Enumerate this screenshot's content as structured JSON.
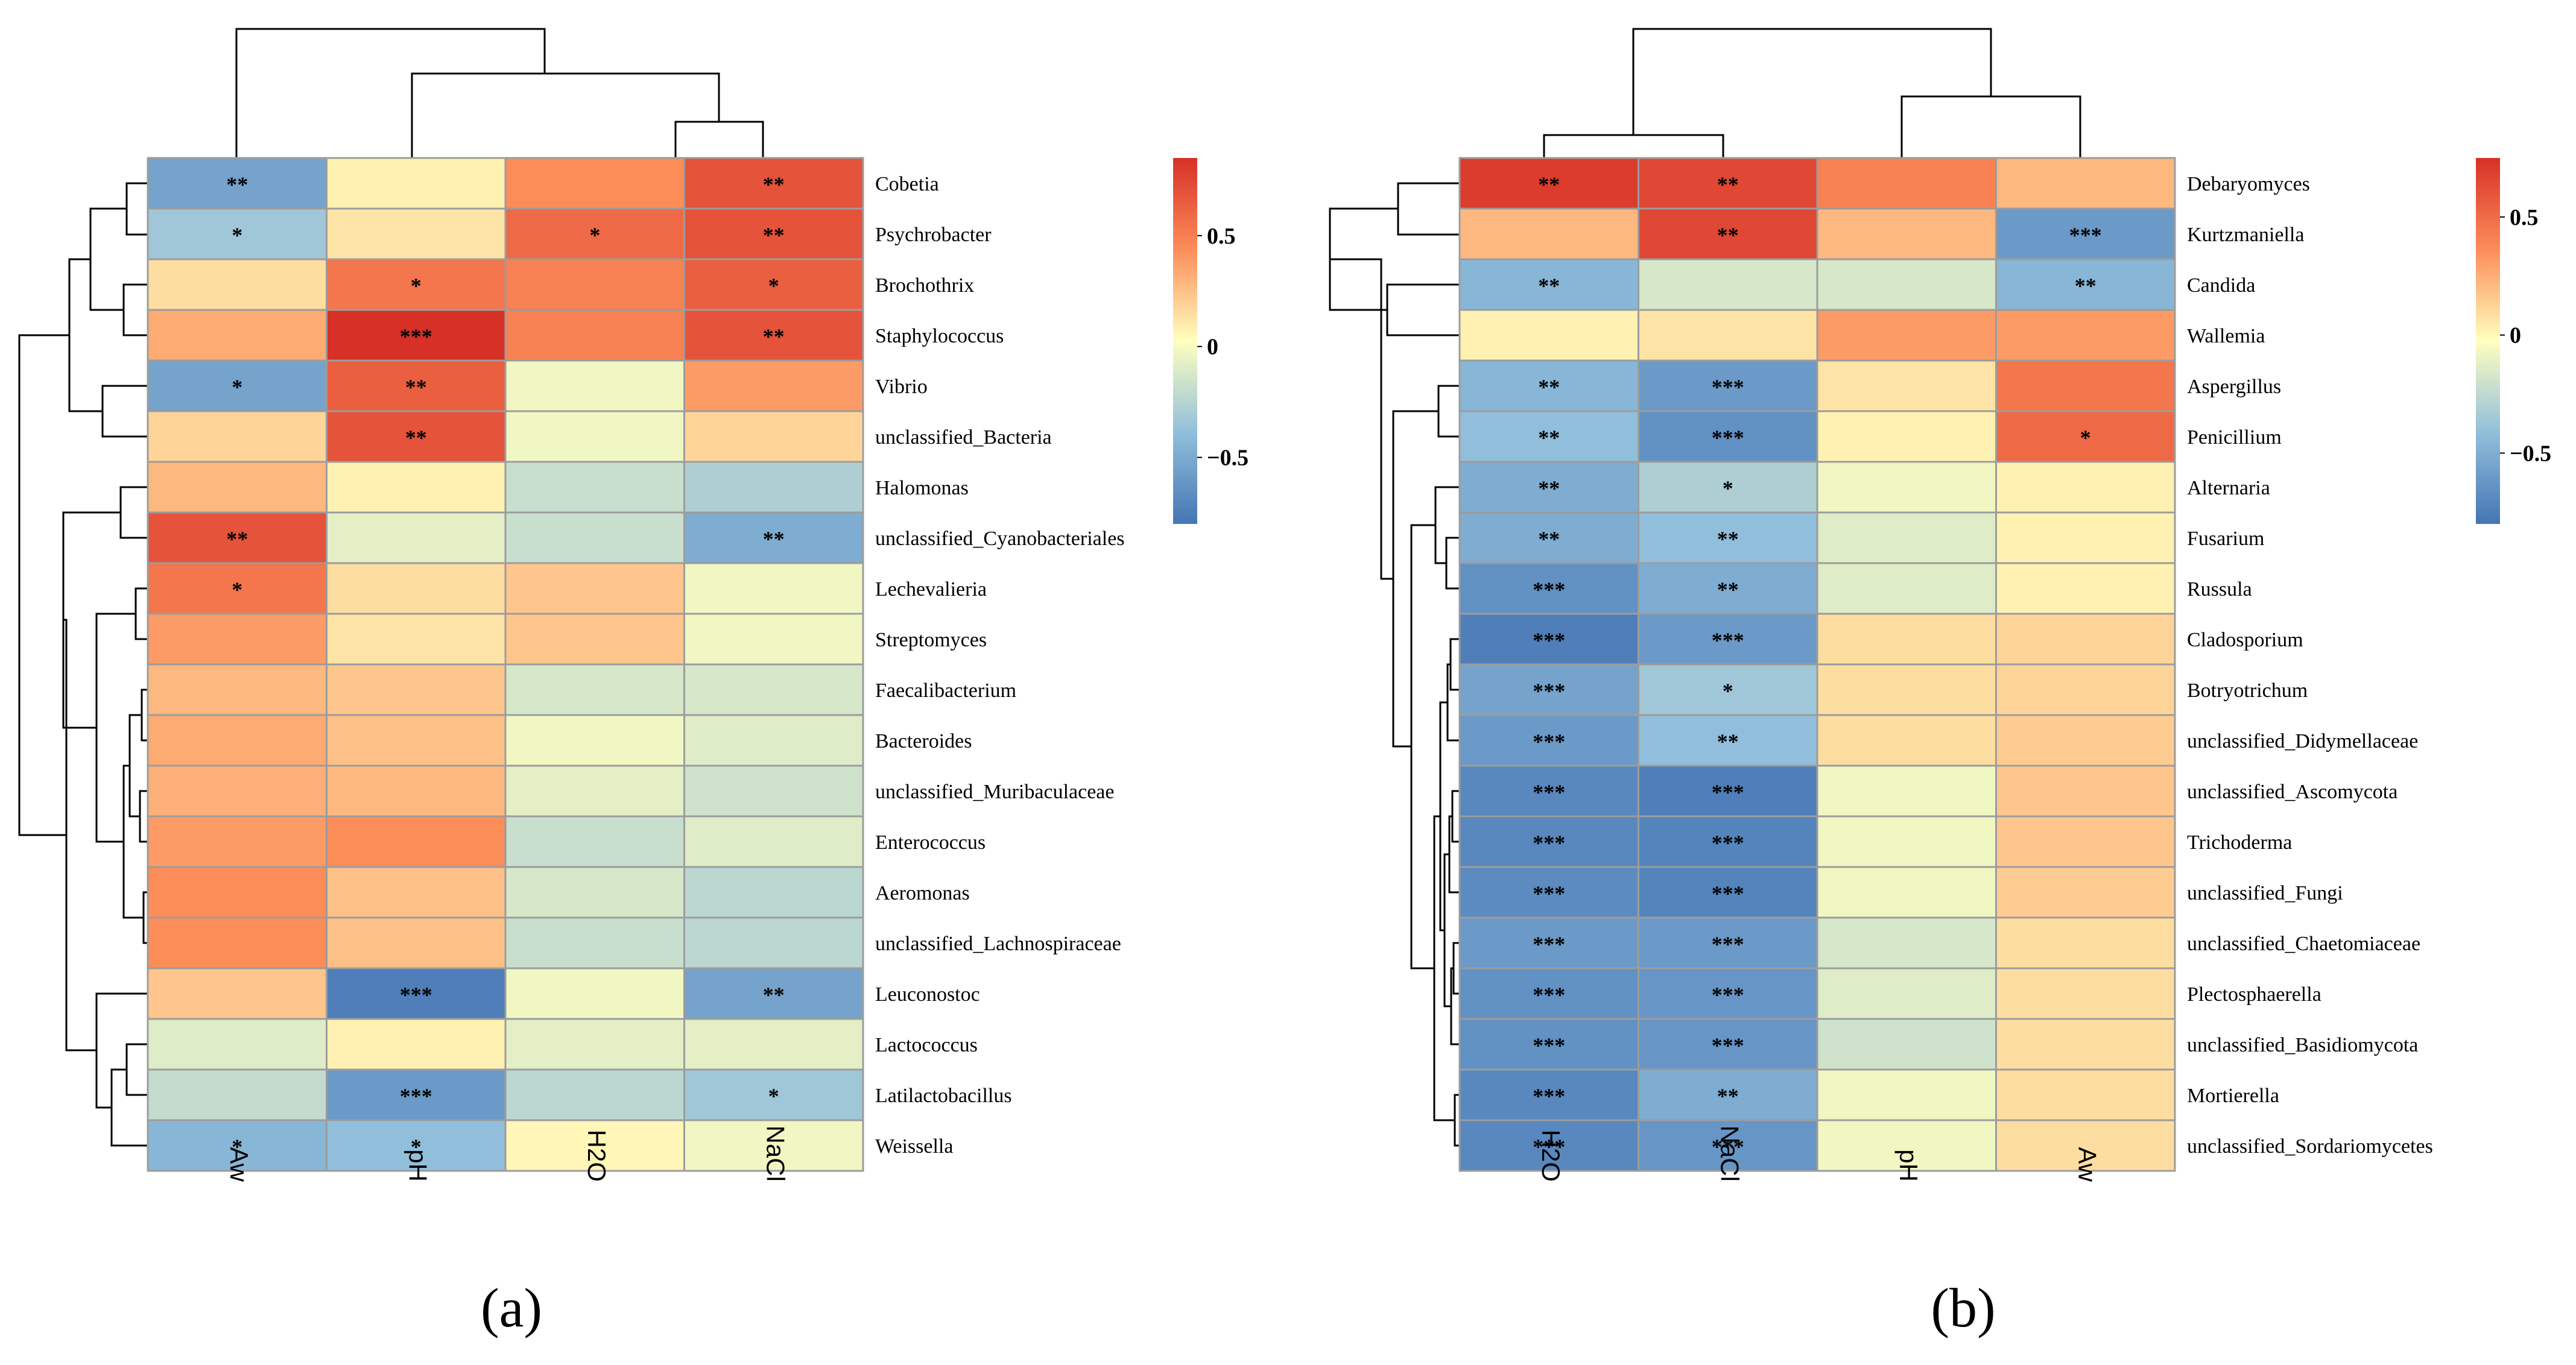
{
  "figure_labels": [
    "(a)",
    "(b)"
  ],
  "colors": {
    "low": "#4575b4",
    "mid": "#ffffbf",
    "high": "#d73027",
    "cell_border": "#9c9c9c",
    "line": "#000000"
  },
  "chart_data": [
    {
      "type": "heatmap",
      "title": "(a)",
      "columns": [
        "Aw",
        "pH",
        "H2O",
        "NaCl"
      ],
      "rows": [
        "Cobetia",
        "Psychrobacter",
        "Brochothrix",
        "Staphylococcus",
        "Vibrio",
        "unclassified_Bacteria",
        "Halomonas",
        "unclassified_Cyanobacteriales",
        "Lechevalieria",
        "Streptomyces",
        "Faecalibacterium",
        "Bacteroides",
        "unclassified_Muribaculaceae",
        "Enterococcus",
        "Aeromonas",
        "unclassified_Lachnospiraceae",
        "Leuconostoc",
        "Lactococcus",
        "Latilactobacillus",
        "Weissella"
      ],
      "values": [
        [
          -0.55,
          0.05,
          0.4,
          0.65
        ],
        [
          -0.35,
          0.1,
          0.55,
          0.65
        ],
        [
          0.12,
          0.5,
          0.45,
          0.6
        ],
        [
          0.3,
          0.85,
          0.45,
          0.65
        ],
        [
          -0.55,
          0.6,
          -0.05,
          0.35
        ],
        [
          0.15,
          0.65,
          -0.05,
          0.15
        ],
        [
          0.25,
          0.05,
          -0.2,
          -0.3
        ],
        [
          0.65,
          -0.1,
          -0.2,
          -0.5
        ],
        [
          0.5,
          0.12,
          0.2,
          -0.05
        ],
        [
          0.35,
          0.1,
          0.2,
          -0.05
        ],
        [
          0.25,
          0.2,
          -0.15,
          -0.15
        ],
        [
          0.3,
          0.22,
          -0.05,
          -0.12
        ],
        [
          0.28,
          0.25,
          -0.1,
          -0.18
        ],
        [
          0.35,
          0.4,
          -0.2,
          -0.12
        ],
        [
          0.4,
          0.22,
          -0.15,
          -0.25
        ],
        [
          0.4,
          0.22,
          -0.2,
          -0.25
        ],
        [
          0.2,
          -0.75,
          -0.05,
          -0.55
        ],
        [
          -0.12,
          0.05,
          -0.1,
          -0.1
        ],
        [
          -0.22,
          -0.6,
          -0.25,
          -0.35
        ],
        [
          -0.45,
          -0.4,
          0.03,
          -0.05
        ]
      ],
      "significance": [
        [
          "**",
          "",
          "",
          "**"
        ],
        [
          "*",
          "",
          "*",
          "**"
        ],
        [
          "",
          "*",
          "",
          "*"
        ],
        [
          "",
          "***",
          "",
          "**"
        ],
        [
          "*",
          "**",
          "",
          ""
        ],
        [
          "",
          "**",
          "",
          ""
        ],
        [
          "",
          "",
          "",
          ""
        ],
        [
          "**",
          "",
          "",
          "**"
        ],
        [
          "*",
          "",
          "",
          ""
        ],
        [
          "",
          "",
          "",
          ""
        ],
        [
          "",
          "",
          "",
          ""
        ],
        [
          "",
          "",
          "",
          ""
        ],
        [
          "",
          "",
          "",
          ""
        ],
        [
          "",
          "",
          "",
          ""
        ],
        [
          "",
          "",
          "",
          ""
        ],
        [
          "",
          "",
          "",
          ""
        ],
        [
          "",
          "***",
          "",
          "**"
        ],
        [
          "",
          "",
          "",
          ""
        ],
        [
          "",
          "***",
          "",
          "*"
        ],
        [
          "*",
          "*",
          "",
          ""
        ]
      ],
      "legend": {
        "ticks": [
          0.5,
          0,
          -0.5
        ],
        "tick_labels": [
          "0.5",
          "0",
          "−0.5"
        ],
        "range": [
          -0.8,
          0.85
        ]
      },
      "col_dendrogram": {
        "merges": [
          [
            2,
            3
          ],
          [
            1,
            "H2O-NaCl"
          ],
          [
            0,
            "pH-H2O-NaCl"
          ]
        ]
      }
    },
    {
      "type": "heatmap",
      "title": "(b)",
      "columns": [
        "H2O",
        "NaCl",
        "pH",
        "Aw"
      ],
      "rows": [
        "Debaryomyces",
        "Kurtzmaniella",
        "Candida",
        "Wallemia",
        "Aspergillus",
        "Penicillium",
        "Alternaria",
        "Fusarium",
        "Russula",
        "Cladosporium",
        "Botryotrichum",
        "unclassified_Didymellaceae",
        "unclassified_Ascomycota",
        "Trichoderma",
        "unclassified_Fungi",
        "unclassified_Chaetomiaceae",
        "Plectosphaerella",
        "unclassified_Basidiomycota",
        "Mortierella",
        "unclassified_Sordariomycetes"
      ],
      "values": [
        [
          0.75,
          0.7,
          0.45,
          0.25
        ],
        [
          0.25,
          0.7,
          0.25,
          -0.6
        ],
        [
          -0.45,
          -0.15,
          -0.15,
          -0.45
        ],
        [
          0.05,
          0.1,
          0.35,
          0.35
        ],
        [
          -0.45,
          -0.6,
          0.1,
          0.5
        ],
        [
          -0.4,
          -0.65,
          0.05,
          0.55
        ],
        [
          -0.5,
          -0.3,
          -0.05,
          0.05
        ],
        [
          -0.5,
          -0.4,
          -0.12,
          0.05
        ],
        [
          -0.65,
          -0.5,
          -0.12,
          0.05
        ],
        [
          -0.75,
          -0.6,
          0.12,
          0.15
        ],
        [
          -0.55,
          -0.35,
          0.12,
          0.15
        ],
        [
          -0.6,
          -0.4,
          0.12,
          0.18
        ],
        [
          -0.7,
          -0.75,
          -0.05,
          0.2
        ],
        [
          -0.7,
          -0.72,
          -0.05,
          0.2
        ],
        [
          -0.68,
          -0.72,
          -0.05,
          0.18
        ],
        [
          -0.6,
          -0.6,
          -0.15,
          0.12
        ],
        [
          -0.65,
          -0.62,
          -0.12,
          0.12
        ],
        [
          -0.65,
          -0.62,
          -0.18,
          0.12
        ],
        [
          -0.7,
          -0.5,
          -0.05,
          0.12
        ],
        [
          -0.7,
          -0.62,
          -0.05,
          0.12
        ]
      ],
      "significance": [
        [
          "**",
          "**",
          "",
          ""
        ],
        [
          "",
          "**",
          "",
          "***"
        ],
        [
          "**",
          "",
          "",
          "**"
        ],
        [
          "",
          "",
          "",
          ""
        ],
        [
          "**",
          "***",
          "",
          ""
        ],
        [
          "**",
          "***",
          "",
          "*"
        ],
        [
          "**",
          "*",
          "",
          ""
        ],
        [
          "**",
          "**",
          "",
          ""
        ],
        [
          "***",
          "**",
          "",
          ""
        ],
        [
          "***",
          "***",
          "",
          ""
        ],
        [
          "***",
          "*",
          "",
          ""
        ],
        [
          "***",
          "**",
          "",
          ""
        ],
        [
          "***",
          "***",
          "",
          ""
        ],
        [
          "***",
          "***",
          "",
          ""
        ],
        [
          "***",
          "***",
          "",
          ""
        ],
        [
          "***",
          "***",
          "",
          ""
        ],
        [
          "***",
          "***",
          "",
          ""
        ],
        [
          "***",
          "***",
          "",
          ""
        ],
        [
          "***",
          "**",
          "",
          ""
        ],
        [
          "***",
          "***",
          "",
          ""
        ]
      ],
      "legend": {
        "ticks": [
          0.5,
          0,
          -0.5
        ],
        "tick_labels": [
          "0.5",
          "0",
          "−0.5"
        ],
        "range": [
          -0.8,
          0.75
        ]
      },
      "col_dendrogram": {
        "merges": [
          [
            0,
            1
          ],
          [
            2,
            3
          ],
          [
            "H2O-NaCl",
            "pH-Aw"
          ]
        ]
      }
    }
  ]
}
